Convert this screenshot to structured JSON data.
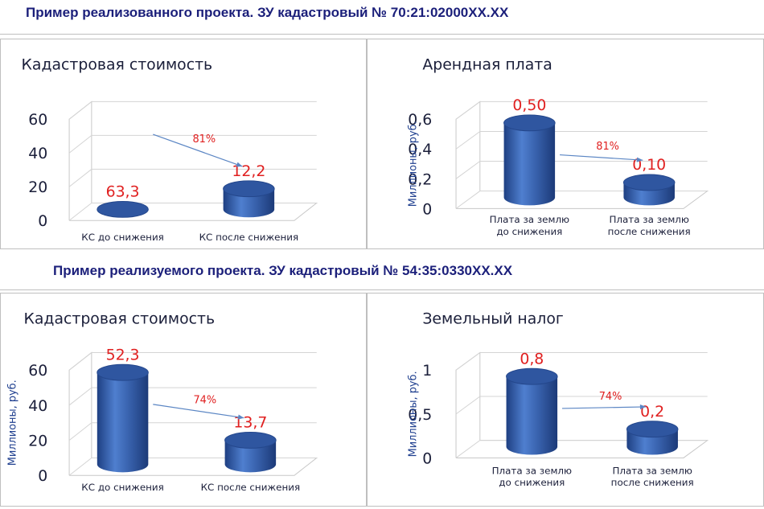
{
  "headings": [
    "Пример реализованного проекта. ЗУ кадастровый № 70:21:02000ХХ.ХХ",
    "Пример реализуемого проекта. ЗУ кадастровый № 54:35:0330ХХ.ХХ"
  ],
  "chart_data": [
    {
      "type": "bar",
      "title": "Кадастровая стоимость",
      "ylabel": "",
      "categories": [
        "КС до снижения",
        "КС после снижения"
      ],
      "values": [
        63.3,
        12.2
      ],
      "data_labels": [
        "63,3",
        "12,2"
      ],
      "yticks": [
        "0",
        "20",
        "40",
        "60"
      ],
      "ylim": [
        0,
        60
      ],
      "annotation": "81%",
      "colors": {
        "bar": "#3a64b0",
        "label": "#e02020",
        "arrow": "#5b86c4"
      }
    },
    {
      "type": "bar",
      "title": "Арендная плата",
      "ylabel": "Миллионы, руб.",
      "categories": [
        "Плата за землю до снижения",
        "Плата за землю после снижения"
      ],
      "values": [
        0.5,
        0.1
      ],
      "data_labels": [
        "0,50",
        "0,10"
      ],
      "yticks": [
        "0",
        "0,2",
        "0,4",
        "0,6"
      ],
      "ylim": [
        0,
        0.6
      ],
      "annotation": "81%",
      "colors": {
        "bar": "#3a64b0",
        "label": "#e02020",
        "arrow": "#5b86c4"
      }
    },
    {
      "type": "bar",
      "title": "Кадастровая стоимость",
      "ylabel": "Миллионы, руб.",
      "categories": [
        "КС до снижения",
        "КС после снижения"
      ],
      "values": [
        52.3,
        13.7
      ],
      "data_labels": [
        "52,3",
        "13,7"
      ],
      "yticks": [
        "0",
        "20",
        "40",
        "60"
      ],
      "ylim": [
        0,
        60
      ],
      "annotation": "74%",
      "colors": {
        "bar": "#3a64b0",
        "label": "#e02020",
        "arrow": "#5b86c4"
      }
    },
    {
      "type": "bar",
      "title": "Земельный налог",
      "ylabel": "Миллионы, руб.",
      "categories": [
        "Плата за землю до снижения",
        "Плата за землю после снижения"
      ],
      "values": [
        0.8,
        0.2
      ],
      "data_labels": [
        "0,8",
        "0,2"
      ],
      "yticks": [
        "0",
        "0,5",
        "1"
      ],
      "ylim": [
        0,
        1
      ],
      "annotation": "74%",
      "colors": {
        "bar": "#3a64b0",
        "label": "#e02020",
        "arrow": "#5b86c4"
      }
    }
  ]
}
